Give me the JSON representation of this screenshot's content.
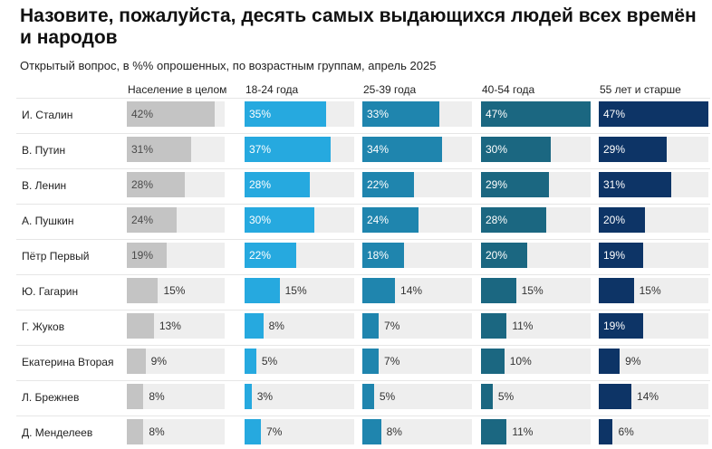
{
  "title": "Назовите, пожалуйста, десять самых выдающихся людей всех времён и народов",
  "subtitle": "Открытый вопрос, в %% опрошенных, по возрастным группам, апрель 2025",
  "chart_data": {
    "type": "bar",
    "title": "Назовите, пожалуйста, десять самых выдающихся людей всех времён и народов",
    "subtitle": "Открытый вопрос, в %% опрошенных, по возрастным группам, апрель 2025",
    "categories": [
      "И. Сталин",
      "В. Путин",
      "В. Ленин",
      "А. Пушкин",
      "Пётр Первый",
      "Ю. Гагарин",
      "Г. Жуков",
      "Екатерина Вторая",
      "Л. Брежнев",
      "Д. Менделеев"
    ],
    "series": [
      {
        "name": "Население в целом",
        "color": "#c4c4c4",
        "values": [
          42,
          31,
          28,
          24,
          19,
          15,
          13,
          9,
          8,
          8
        ]
      },
      {
        "name": "18-24 года",
        "color": "#26a9df",
        "values": [
          35,
          37,
          28,
          30,
          22,
          15,
          8,
          5,
          3,
          7
        ]
      },
      {
        "name": "25-39 года",
        "color": "#1f85ae",
        "values": [
          33,
          34,
          22,
          24,
          18,
          14,
          7,
          7,
          5,
          8
        ]
      },
      {
        "name": "40-54 года",
        "color": "#1b6781",
        "values": [
          47,
          30,
          29,
          28,
          20,
          15,
          11,
          10,
          5,
          11
        ]
      },
      {
        "name": "55 лет и старше",
        "color": "#0d3466",
        "values": [
          47,
          29,
          31,
          20,
          19,
          15,
          19,
          9,
          14,
          6
        ]
      }
    ],
    "value_suffix": "%",
    "xlim": [
      0,
      47
    ],
    "layout": "small-multiples-horizontal",
    "grid": false
  }
}
